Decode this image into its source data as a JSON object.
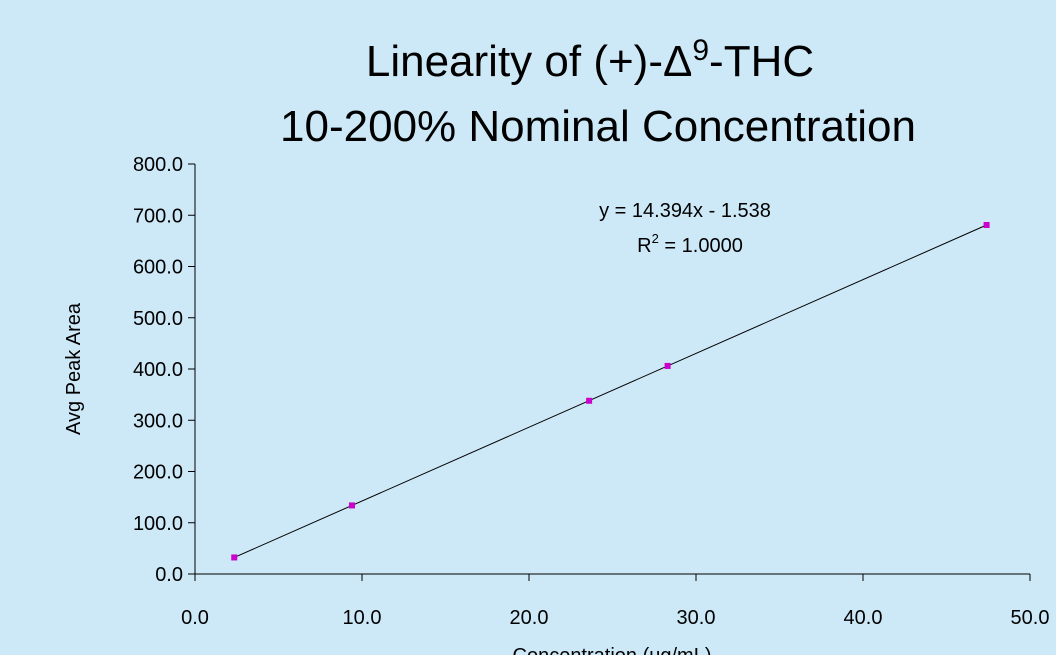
{
  "chart_data": {
    "type": "scatter",
    "title": [
      "Linearity of (+)-Δ",
      "9",
      "-THC"
    ],
    "subtitle": "10-200% Nominal Concentration",
    "x_label": "Concentration (ug/mL)",
    "y_label": "Avg Peak Area",
    "annotations": [
      "y = 14.394x - 1.538",
      "R",
      "2",
      " = 1.0000"
    ],
    "x": [
      2.35,
      9.4,
      23.6,
      28.3,
      47.4
    ],
    "values": [
      32.3,
      133.8,
      338,
      406,
      681
    ],
    "color": "#cc00cc",
    "trendline": true,
    "xlim": [
      0,
      50
    ],
    "xticks": [
      {
        "value": 0,
        "label": "0.0"
      },
      {
        "value": 10,
        "label": "10.0"
      },
      {
        "value": 20,
        "label": "20.0"
      },
      {
        "value": 30,
        "label": "30.0"
      },
      {
        "value": 40,
        "label": "40.0"
      },
      {
        "value": 50,
        "label": "50.0"
      }
    ],
    "ylim": [
      0,
      800
    ],
    "yticks": [
      {
        "value": 0,
        "label": "0.0"
      },
      {
        "value": 100,
        "label": "100.0"
      },
      {
        "value": 200,
        "label": "200.0"
      },
      {
        "value": 300,
        "label": "300.0"
      },
      {
        "value": 400,
        "label": "400.0"
      },
      {
        "value": 500,
        "label": "500.0"
      },
      {
        "value": 600,
        "label": "600.0"
      },
      {
        "value": 700,
        "label": "700.0"
      },
      {
        "value": 800,
        "label": "800.0"
      }
    ]
  }
}
